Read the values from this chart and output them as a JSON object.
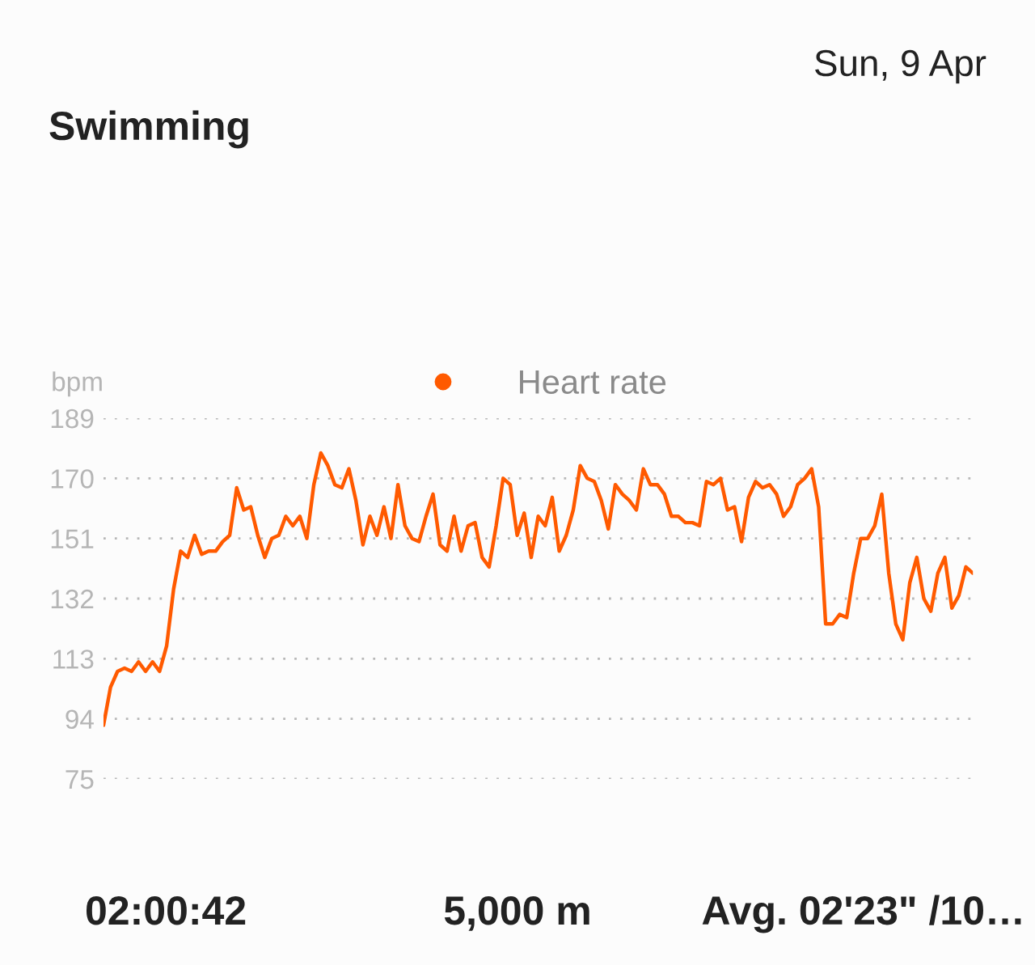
{
  "chart_data": {
    "type": "line",
    "title": "Swimming",
    "ylabel": "bpm",
    "annotations": [
      "Sun, 9 Apr",
      "02:00:42",
      "5,000 m",
      "Avg. 02'23\" /10…"
    ],
    "categories": [
      null,
      null,
      null,
      null,
      null,
      null,
      null,
      null,
      null,
      null,
      null,
      null,
      null,
      null,
      null,
      null,
      null,
      null,
      null,
      null,
      null,
      null,
      null,
      null,
      null,
      null,
      null,
      null,
      null,
      null,
      null,
      null,
      null,
      null,
      null,
      null,
      null,
      null,
      null,
      null,
      null,
      null,
      null,
      null,
      null,
      null,
      null,
      null,
      null,
      null,
      null,
      null,
      null,
      null,
      null,
      null,
      null,
      null,
      null,
      null,
      null,
      null,
      null,
      null,
      null,
      null,
      null,
      null,
      null,
      null,
      null,
      null,
      null,
      null,
      null,
      null,
      null,
      null,
      null,
      null,
      null,
      null,
      null,
      null,
      null,
      null,
      null,
      null,
      null,
      null,
      null,
      null,
      null,
      null,
      null,
      null,
      null,
      null,
      null,
      null,
      null,
      null,
      null,
      null,
      null,
      null,
      null,
      null,
      null,
      null,
      null,
      null,
      null,
      null,
      null,
      null,
      null,
      null,
      null,
      null,
      null,
      null,
      null,
      null,
      null
    ],
    "series": [
      {
        "name": "Heart rate",
        "color": "#ff5a00",
        "values": [
          92,
          104,
          109,
          110,
          109,
          112,
          109,
          112,
          109,
          117,
          135,
          147,
          145,
          152,
          146,
          147,
          147,
          150,
          152,
          167,
          160,
          161,
          152,
          145,
          151,
          152,
          158,
          155,
          158,
          151,
          168,
          178,
          174,
          168,
          167,
          173,
          163,
          149,
          158,
          152,
          161,
          151,
          168,
          155,
          151,
          150,
          158,
          165,
          149,
          147,
          158,
          147,
          155,
          156,
          145,
          142,
          155,
          170,
          168,
          152,
          159,
          145,
          158,
          155,
          164,
          147,
          152,
          160,
          174,
          170,
          169,
          163,
          154,
          168,
          165,
          163,
          160,
          173,
          168,
          168,
          165,
          158,
          158,
          156,
          156,
          155,
          169,
          168,
          170,
          160,
          161,
          150,
          164,
          169,
          167,
          168,
          165,
          158,
          161,
          168,
          170,
          173,
          161,
          124,
          124,
          127,
          126,
          140,
          151,
          151,
          155,
          165,
          140,
          124,
          119,
          137,
          145,
          132,
          128,
          140,
          145,
          129,
          133,
          142,
          140
        ]
      }
    ],
    "ylim": [
      75,
      189
    ],
    "yticks": [
      75,
      94,
      113,
      132,
      151,
      170,
      189
    ],
    "grid": "y",
    "legend": "top",
    "marker": "none",
    "line_style": "solid"
  }
}
